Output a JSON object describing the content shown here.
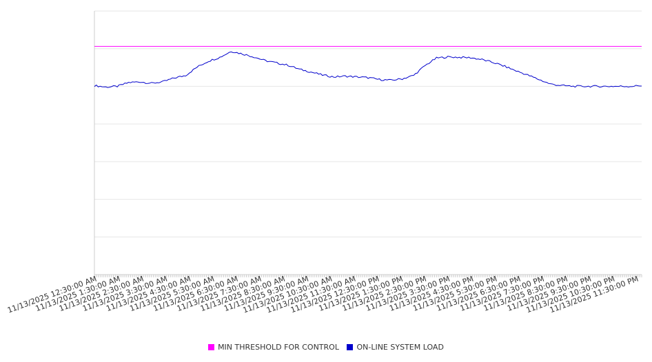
{
  "chart_data": {
    "type": "line",
    "title": "",
    "xlabel": "",
    "ylabel": "",
    "grid": true,
    "legend_position": "bottom",
    "ylim": [
      0,
      7
    ],
    "x_tick_labels": [
      "11/13/2025 12:30:00 AM",
      "11/13/2025 1:30:00 AM",
      "11/13/2025 2:30:00 AM",
      "11/13/2025 3:30:00 AM",
      "11/13/2025 4:30:00 AM",
      "11/13/2025 5:30:00 AM",
      "11/13/2025 6:30:00 AM",
      "11/13/2025 7:30:00 AM",
      "11/13/2025 8:30:00 AM",
      "11/13/2025 9:30:00 AM",
      "11/13/2025 10:30:00 AM",
      "11/13/2025 11:30:00 AM",
      "11/13/2025 12:30:00 PM",
      "11/13/2025 1:30:00 PM",
      "11/13/2025 2:30:00 PM",
      "11/13/2025 3:30:00 PM",
      "11/13/2025 4:30:00 PM",
      "11/13/2025 5:30:00 PM",
      "11/13/2025 6:30:00 PM",
      "11/13/2025 7:30:00 PM",
      "11/13/2025 8:30:00 PM",
      "11/13/2025 9:30:00 PM",
      "11/13/2025 10:30:00 PM",
      "11/13/2025 11:30:00 PM"
    ],
    "x_hours": [
      0,
      0.5,
      1,
      1.5,
      2,
      2.5,
      3,
      3.5,
      4,
      4.5,
      5,
      5.5,
      6,
      6.5,
      7,
      7.5,
      8,
      8.5,
      9,
      9.5,
      10,
      10.5,
      11,
      11.5,
      12,
      12.5,
      13,
      13.5,
      14,
      14.5,
      15,
      15.5,
      16,
      16.5,
      17,
      17.5,
      18,
      18.5,
      19,
      19.5,
      20,
      20.5,
      21,
      21.5,
      22,
      22.5,
      23,
      23.5,
      24
    ],
    "series": [
      {
        "name": "MIN THRESHOLD FOR CONTROL",
        "color": "#ff00ff",
        "values": [
          6.06,
          6.06,
          6.06,
          6.06,
          6.06,
          6.06,
          6.06,
          6.06,
          6.06,
          6.06,
          6.06,
          6.06,
          6.06,
          6.06,
          6.06,
          6.06,
          6.06,
          6.06,
          6.06,
          6.06,
          6.06,
          6.06,
          6.06,
          6.06,
          6.06,
          6.06,
          6.06,
          6.06,
          6.06,
          6.06,
          6.06,
          6.06,
          6.06,
          6.06,
          6.06,
          6.06,
          6.06,
          6.06,
          6.06,
          6.06,
          6.06,
          6.06,
          6.06,
          6.06,
          6.06,
          6.06,
          6.06,
          6.06,
          6.06
        ]
      },
      {
        "name": "ON-LINE SYSTEM LOAD",
        "color": "#0000cc",
        "values": [
          5.02,
          4.98,
          5.0,
          5.1,
          5.12,
          5.08,
          5.12,
          5.22,
          5.29,
          5.51,
          5.67,
          5.77,
          5.93,
          5.86,
          5.78,
          5.68,
          5.62,
          5.56,
          5.45,
          5.38,
          5.3,
          5.25,
          5.27,
          5.25,
          5.23,
          5.18,
          5.16,
          5.2,
          5.29,
          5.55,
          5.75,
          5.78,
          5.77,
          5.76,
          5.71,
          5.63,
          5.53,
          5.41,
          5.3,
          5.18,
          5.06,
          5.02,
          5.0,
          5.0,
          5.0,
          5.0,
          5.0,
          5.0,
          5.02
        ]
      }
    ]
  }
}
